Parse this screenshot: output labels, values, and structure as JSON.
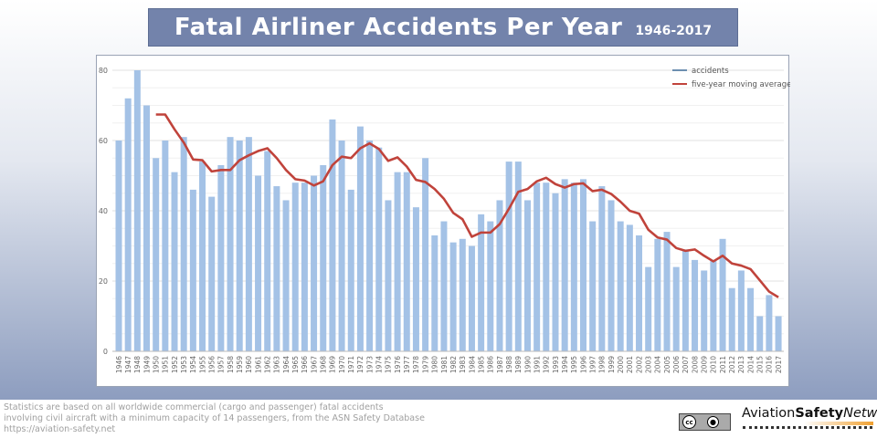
{
  "header": {
    "title": "Fatal Airliner Accidents Per Year",
    "subtitle": "1946-2017"
  },
  "footer": {
    "lines": [
      "Statistics are based on all worldwide commercial (cargo and passenger) fatal accidents",
      "involving civil aircraft with a minimum capacity of 14 passengers, from the ASN Safety Database",
      "https://aviation-safety.net"
    ],
    "license": {
      "cc": "cc",
      "by": "BY"
    },
    "logo": {
      "part1": "Aviation",
      "part2": "Safety",
      "part3": "Network"
    }
  },
  "colors": {
    "bars": "#a4c2e6",
    "line": "#c0433b",
    "title_bg": "#7383ab"
  },
  "chart_data": {
    "type": "bar",
    "title": "Fatal Airliner Accidents Per Year",
    "categories": [
      1946,
      1947,
      1948,
      1949,
      1950,
      1951,
      1952,
      1953,
      1954,
      1955,
      1956,
      1957,
      1958,
      1959,
      1960,
      1961,
      1962,
      1963,
      1964,
      1965,
      1966,
      1967,
      1968,
      1969,
      1970,
      1971,
      1972,
      1973,
      1974,
      1975,
      1976,
      1977,
      1978,
      1979,
      1980,
      1981,
      1982,
      1983,
      1984,
      1985,
      1986,
      1987,
      1988,
      1989,
      1990,
      1991,
      1992,
      1993,
      1994,
      1995,
      1996,
      1997,
      1998,
      1999,
      2000,
      2001,
      2002,
      2003,
      2004,
      2005,
      2006,
      2007,
      2008,
      2009,
      2010,
      2011,
      2012,
      2013,
      2014,
      2015,
      2016,
      2017
    ],
    "series": [
      {
        "name": "accidents",
        "type": "bar",
        "values": [
          60,
          72,
          80,
          70,
          55,
          60,
          51,
          61,
          46,
          54,
          44,
          53,
          61,
          60,
          61,
          50,
          57,
          47,
          43,
          48,
          48,
          50,
          53,
          66,
          60,
          46,
          64,
          60,
          58,
          43,
          51,
          51,
          41,
          55,
          33,
          37,
          31,
          32,
          30,
          39,
          37,
          43,
          54,
          54,
          43,
          48,
          48,
          45,
          49,
          48,
          49,
          37,
          47,
          43,
          37,
          36,
          33,
          24,
          32,
          34,
          24,
          29,
          26,
          23,
          26,
          32,
          18,
          23,
          18,
          10,
          16,
          10
        ]
      },
      {
        "name": "five-year moving average",
        "type": "line",
        "values": [
          null,
          null,
          null,
          null,
          67.4,
          67.4,
          63.2,
          59.4,
          54.6,
          54.4,
          51.2,
          51.6,
          51.6,
          54.4,
          55.8,
          57,
          57.8,
          55,
          51.6,
          49,
          48.6,
          47.2,
          48.4,
          53,
          55.4,
          55,
          57.8,
          59.2,
          57.6,
          54.2,
          55.2,
          52.6,
          48.8,
          48.2,
          46.2,
          43.4,
          39.4,
          37.6,
          32.6,
          33.8,
          33.8,
          36.2,
          40.6,
          45.4,
          46.2,
          48.4,
          49.4,
          47.6,
          46.6,
          47.6,
          47.8,
          45.6,
          46,
          44.8,
          42.6,
          40,
          39.2,
          34.6,
          32.4,
          31.8,
          29.4,
          28.6,
          29,
          27.2,
          25.6,
          27.2,
          25,
          24.4,
          23.4,
          20.2,
          17,
          15.4
        ]
      }
    ],
    "yticks": [
      0,
      20,
      40,
      60,
      80
    ],
    "ylim": [
      0,
      80
    ],
    "grid": true,
    "legend": "top-right"
  }
}
